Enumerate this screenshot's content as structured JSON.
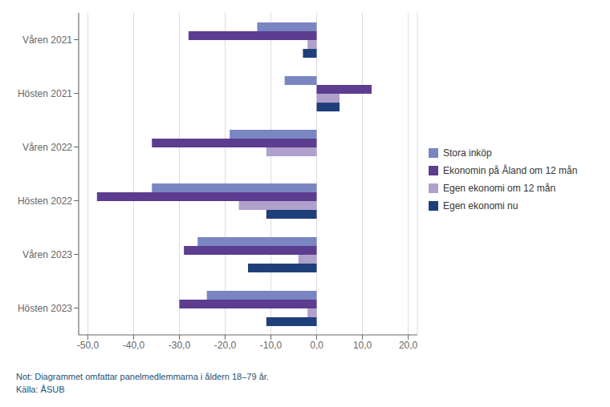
{
  "chart_data": {
    "type": "bar",
    "orientation": "horizontal",
    "categories": [
      "Våren 2021",
      "Hösten 2021",
      "Våren 2022",
      "Hösten 2022",
      "Våren 2023",
      "Hösten 2023"
    ],
    "series": [
      {
        "name": "Stora inköp",
        "color": "#7986c2",
        "values": [
          -13,
          -7,
          -19,
          -36,
          -26,
          -24
        ]
      },
      {
        "name": "Ekonomin på Åland om 12 mån",
        "color": "#5c3d8f",
        "values": [
          -28,
          12,
          -36,
          -48,
          -29,
          -30
        ]
      },
      {
        "name": "Egen ekonomi om 12 mån",
        "color": "#b0a0cc",
        "values": [
          -2,
          5,
          -11,
          -17,
          -4,
          -2
        ]
      },
      {
        "name": "Egen ekonomi nu",
        "color": "#1f3f7a",
        "values": [
          -3,
          5,
          0,
          -11,
          -15,
          -11
        ]
      }
    ],
    "xlim": [
      -52,
      22
    ],
    "xticks": [
      {
        "value": -50,
        "label": "-50,0"
      },
      {
        "value": -40,
        "label": "-40,0"
      },
      {
        "value": -30,
        "label": "-30,0"
      },
      {
        "value": -20,
        "label": "-20,0"
      },
      {
        "value": -10,
        "label": "-10,0"
      },
      {
        "value": 0,
        "label": "0,0"
      },
      {
        "value": 10,
        "label": "10,0"
      },
      {
        "value": 20,
        "label": "20,0"
      }
    ],
    "grid": true,
    "legend": "right",
    "annotations": [
      "Not: Diagrammet omfattar panelmedlemmarna i åldern 18–79 år.",
      "Källa: ÅSUB"
    ]
  }
}
